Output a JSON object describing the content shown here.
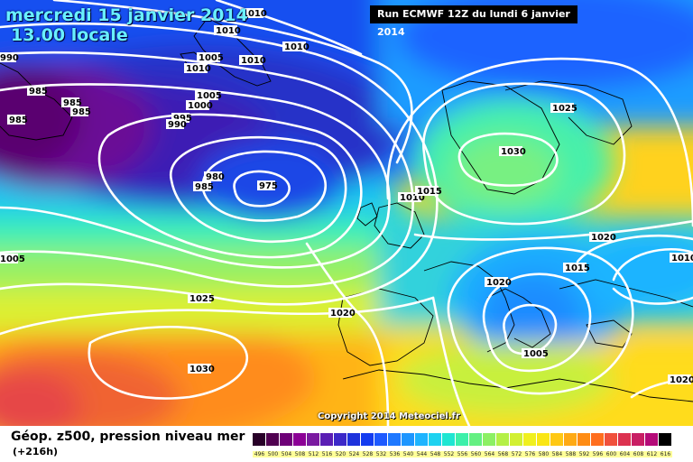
{
  "header": {
    "date_line": "mercredi 15 janvier 2014",
    "time_line": "13.00 locale",
    "run_info": "Run ECMWF 12Z du lundi 6 janvier 2014",
    "copyright": "Copyright 2014 Meteociel.fr"
  },
  "legend": {
    "title": "Géop. z500, pression niveau mer",
    "subtitle": "(+216h)",
    "ticks": [
      "496",
      "500",
      "504",
      "508",
      "512",
      "516",
      "520",
      "524",
      "528",
      "532",
      "536",
      "540",
      "544",
      "548",
      "552",
      "556",
      "560",
      "564",
      "568",
      "572",
      "576",
      "580",
      "584",
      "588",
      "592",
      "596",
      "600",
      "604",
      "608",
      "612",
      "616"
    ],
    "colors": [
      "#280028",
      "#500050",
      "#6e0078",
      "#8c0096",
      "#7a1aa0",
      "#5a1eb4",
      "#3c28c8",
      "#1e32dc",
      "#143cf0",
      "#1e5aff",
      "#1e78ff",
      "#1e96ff",
      "#1eb4ff",
      "#1ed2f0",
      "#1ee6d2",
      "#3cf0aa",
      "#64f082",
      "#8cf064",
      "#b4f046",
      "#d2f032",
      "#f0f01e",
      "#fae614",
      "#ffc814",
      "#ffaa14",
      "#ff8c14",
      "#ff6e1e",
      "#f0503c",
      "#dc3250",
      "#c81e64",
      "#b40a78",
      "#000000"
    ]
  },
  "map": {
    "pressure_labels": [
      {
        "text": "1010"
      },
      {
        "text": "1010"
      },
      {
        "text": "1005"
      },
      {
        "text": "1010"
      },
      {
        "text": "1010"
      },
      {
        "text": "1010"
      },
      {
        "text": "990"
      },
      {
        "text": "985"
      },
      {
        "text": "985"
      },
      {
        "text": "985"
      },
      {
        "text": "985"
      },
      {
        "text": "1005"
      },
      {
        "text": "1000"
      },
      {
        "text": "995"
      },
      {
        "text": "990"
      },
      {
        "text": "980"
      },
      {
        "text": "985"
      },
      {
        "text": "975"
      },
      {
        "text": "1010"
      },
      {
        "text": "1015"
      },
      {
        "text": "1025"
      },
      {
        "text": "1030"
      },
      {
        "text": "1020"
      },
      {
        "text": "1015"
      },
      {
        "text": "1010"
      },
      {
        "text": "1005"
      },
      {
        "text": "1025"
      },
      {
        "text": "1020"
      },
      {
        "text": "1020"
      },
      {
        "text": "1005"
      },
      {
        "text": "1030"
      },
      {
        "text": "1020"
      }
    ]
  }
}
